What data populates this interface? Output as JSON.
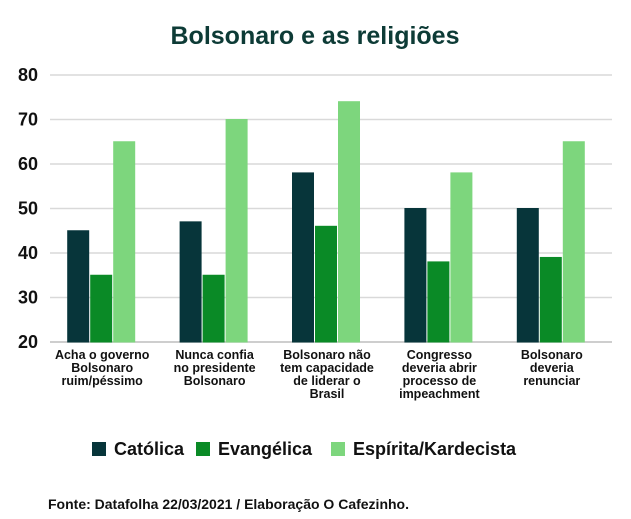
{
  "chart_data": {
    "type": "bar",
    "title": "Bolsonaro e as religiões",
    "categories": [
      [
        "Acha o governo",
        "Bolsonaro",
        "ruim/péssimo"
      ],
      [
        "Nunca confia",
        "no presidente",
        "Bolsonaro"
      ],
      [
        "Bolsonaro não",
        "tem capacidade",
        "de liderar o",
        "Brasil"
      ],
      [
        "Congresso",
        "deveria abrir",
        "processo de",
        "impeachment"
      ],
      [
        "Bolsonaro",
        "deveria",
        "renunciar"
      ]
    ],
    "series": [
      {
        "name": "Católica",
        "color": "#07353a",
        "values": [
          45,
          47,
          58,
          50,
          50
        ]
      },
      {
        "name": "Evangélica",
        "color": "#0a8a26",
        "values": [
          35,
          35,
          46,
          38,
          39
        ]
      },
      {
        "name": "Espírita/Kardecista",
        "color": "#7dd67d",
        "values": [
          65,
          70,
          74,
          58,
          65
        ]
      }
    ],
    "ylim": [
      20,
      80
    ],
    "yticks": [
      20,
      30,
      40,
      50,
      60,
      70,
      80
    ],
    "xlabel": "",
    "ylabel": "",
    "grid": true,
    "legend_position": "bottom"
  },
  "source": "Fonte: Datafolha 22/03/2021 / Elaboração O Cafezinho."
}
